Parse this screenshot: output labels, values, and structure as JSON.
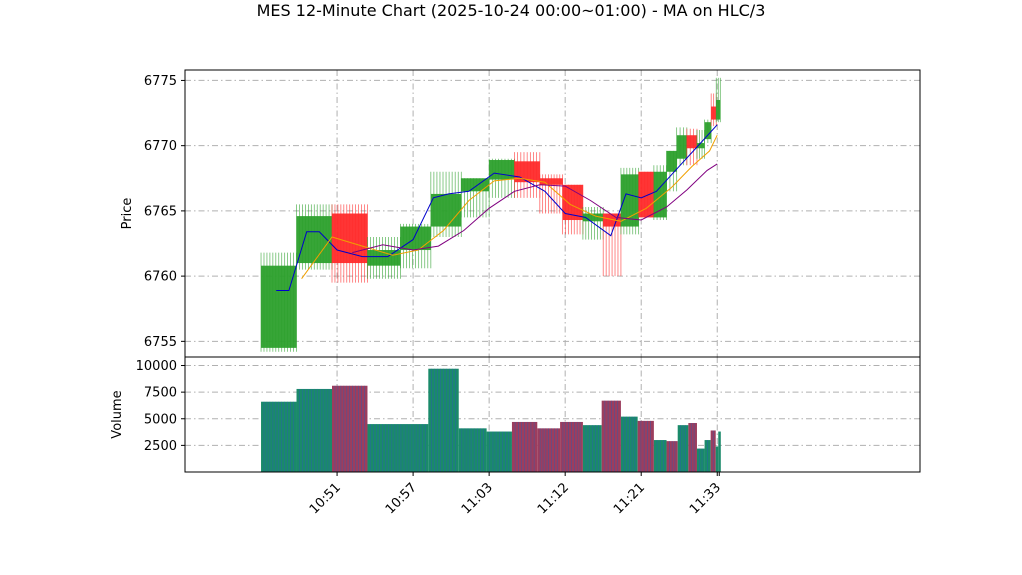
{
  "title": "MES 12-Minute Chart (2025-10-24 00:00~01:00) - MA on HLC/3",
  "colors": {
    "up": "#2ca02c",
    "down": "#ff2a2a",
    "ma_fast": "#0000cc",
    "ma_mid": "#f0a000",
    "ma_slow": "#800080",
    "volume_up": "#1a8a6a",
    "volume_down": "#9c3d5e",
    "grid": "#b0b0b0"
  },
  "chart_data": [
    {
      "type": "ohlc",
      "name": "price",
      "ylabel": "Price",
      "ylim": [
        6753.8,
        6775.8
      ],
      "yticks": [
        6755,
        6760,
        6765,
        6770,
        6775
      ],
      "xlim": [
        10.55,
        12.0
      ],
      "xticks": [
        10.85,
        11.0,
        11.15,
        11.3,
        11.45,
        11.6
      ],
      "xtick_labels": [
        "10:51",
        "10:57",
        "11:03",
        "11:12",
        "11:21",
        "11:33"
      ],
      "grid": true,
      "bars": [
        {
          "x0": 10.7,
          "x1": 10.77,
          "open": 6754.5,
          "high": 6761.8,
          "low": 6754.2,
          "close": 6760.8
        },
        {
          "x0": 10.77,
          "x1": 10.84,
          "open": 6761.0,
          "high": 6765.5,
          "low": 6760.5,
          "close": 6764.6
        },
        {
          "x0": 10.84,
          "x1": 10.91,
          "open": 6764.8,
          "high": 6765.5,
          "low": 6759.5,
          "close": 6761.0
        },
        {
          "x0": 10.91,
          "x1": 10.975,
          "open": 6760.8,
          "high": 6763.0,
          "low": 6759.8,
          "close": 6762.0
        },
        {
          "x0": 10.975,
          "x1": 11.035,
          "open": 6762.0,
          "high": 6764.0,
          "low": 6760.6,
          "close": 6763.8
        },
        {
          "x0": 11.035,
          "x1": 11.095,
          "open": 6763.8,
          "high": 6768.0,
          "low": 6763.0,
          "close": 6766.3
        },
        {
          "x0": 11.095,
          "x1": 11.15,
          "open": 6766.5,
          "high": 6767.5,
          "low": 6764.5,
          "close": 6767.5
        },
        {
          "x0": 11.15,
          "x1": 11.2,
          "open": 6767.4,
          "high": 6769.0,
          "low": 6766.0,
          "close": 6768.9
        },
        {
          "x0": 11.2,
          "x1": 11.25,
          "open": 6768.8,
          "high": 6769.5,
          "low": 6766.0,
          "close": 6767.2
        },
        {
          "x0": 11.25,
          "x1": 11.295,
          "open": 6767.5,
          "high": 6767.8,
          "low": 6764.8,
          "close": 6767.0
        },
        {
          "x0": 11.295,
          "x1": 11.335,
          "open": 6767.0,
          "high": 6767.0,
          "low": 6763.2,
          "close": 6764.3
        },
        {
          "x0": 11.335,
          "x1": 11.375,
          "open": 6764.2,
          "high": 6765.3,
          "low": 6762.8,
          "close": 6764.8
        },
        {
          "x0": 11.375,
          "x1": 11.41,
          "open": 6764.8,
          "high": 6764.8,
          "low": 6760.0,
          "close": 6763.8
        },
        {
          "x0": 11.41,
          "x1": 11.445,
          "open": 6763.8,
          "high": 6768.3,
          "low": 6763.2,
          "close": 6767.8
        },
        {
          "x0": 11.445,
          "x1": 11.475,
          "open": 6768.0,
          "high": 6768.0,
          "low": 6764.5,
          "close": 6764.5
        },
        {
          "x0": 11.475,
          "x1": 11.5,
          "open": 6764.5,
          "high": 6768.5,
          "low": 6764.3,
          "close": 6768.0
        },
        {
          "x0": 11.5,
          "x1": 11.52,
          "open": 6768.0,
          "high": 6769.6,
          "low": 6766.5,
          "close": 6769.6
        },
        {
          "x0": 11.52,
          "x1": 11.54,
          "open": 6769.0,
          "high": 6771.4,
          "low": 6768.5,
          "close": 6770.8
        },
        {
          "x0": 11.54,
          "x1": 11.56,
          "open": 6770.8,
          "high": 6771.3,
          "low": 6768.5,
          "close": 6769.8
        },
        {
          "x0": 11.56,
          "x1": 11.575,
          "open": 6769.8,
          "high": 6771.2,
          "low": 6769.0,
          "close": 6770.2
        },
        {
          "x0": 11.575,
          "x1": 11.588,
          "open": 6770.5,
          "high": 6772.0,
          "low": 6770.2,
          "close": 6771.8
        },
        {
          "x0": 11.588,
          "x1": 11.598,
          "open": 6773.0,
          "high": 6774.0,
          "low": 6771.5,
          "close": 6772.0
        },
        {
          "x0": 11.598,
          "x1": 11.606,
          "open": 6772.0,
          "high": 6775.2,
          "low": 6771.8,
          "close": 6773.5
        }
      ],
      "ma_series": [
        {
          "key": "ma_fast",
          "x": [
            10.73,
            10.755,
            10.79,
            10.815,
            10.85,
            10.9,
            10.95,
            11.0,
            11.04,
            11.07,
            11.11,
            11.16,
            11.21,
            11.26,
            11.3,
            11.34,
            11.39,
            11.42,
            11.45,
            11.48,
            11.52,
            11.56,
            11.6
          ],
          "y": [
            6758.9,
            6758.9,
            6763.4,
            6763.4,
            6762.0,
            6761.5,
            6761.5,
            6762.8,
            6766.0,
            6766.3,
            6766.5,
            6767.9,
            6767.6,
            6766.5,
            6764.8,
            6764.5,
            6763.1,
            6766.3,
            6766.0,
            6766.5,
            6768.2,
            6769.9,
            6771.6
          ]
        },
        {
          "key": "ma_mid",
          "x": [
            10.78,
            10.84,
            10.9,
            10.96,
            11.01,
            11.06,
            11.11,
            11.16,
            11.21,
            11.26,
            11.31,
            11.36,
            11.41,
            11.46,
            11.51,
            11.55,
            11.585,
            11.6
          ],
          "y": [
            6759.8,
            6763.0,
            6762.3,
            6761.6,
            6762.0,
            6763.5,
            6765.8,
            6767.3,
            6767.5,
            6767.2,
            6765.5,
            6764.6,
            6764.2,
            6765.2,
            6766.8,
            6768.4,
            6769.6,
            6770.8
          ]
        },
        {
          "key": "ma_slow",
          "x": [
            10.88,
            10.94,
            11.0,
            11.05,
            11.1,
            11.15,
            11.2,
            11.25,
            11.3,
            11.35,
            11.4,
            11.45,
            11.5,
            11.54,
            11.58,
            11.6
          ],
          "y": [
            6761.8,
            6762.4,
            6762.0,
            6762.3,
            6763.5,
            6765.2,
            6766.5,
            6767.0,
            6766.9,
            6765.8,
            6764.5,
            6764.3,
            6765.3,
            6766.6,
            6768.1,
            6768.6
          ]
        }
      ]
    },
    {
      "type": "bar",
      "name": "volume",
      "ylabel": "Volume",
      "ylim": [
        0,
        10800
      ],
      "yticks": [
        2500,
        5000,
        7500,
        10000
      ],
      "ytick_labels": [
        "2500",
        "5000",
        "7500",
        "10000"
      ],
      "grid": true,
      "bars": [
        {
          "x0": 10.7,
          "x1": 10.77,
          "value": 6600,
          "dir": "up"
        },
        {
          "x0": 10.77,
          "x1": 10.84,
          "value": 7800,
          "dir": "up"
        },
        {
          "x0": 10.84,
          "x1": 10.91,
          "value": 8100,
          "dir": "down"
        },
        {
          "x0": 10.91,
          "x1": 11.03,
          "value": 4500,
          "dir": "up"
        },
        {
          "x0": 11.03,
          "x1": 11.09,
          "value": 9700,
          "dir": "up"
        },
        {
          "x0": 11.09,
          "x1": 11.145,
          "value": 4100,
          "dir": "up"
        },
        {
          "x0": 11.145,
          "x1": 11.195,
          "value": 3800,
          "dir": "up"
        },
        {
          "x0": 11.195,
          "x1": 11.245,
          "value": 4700,
          "dir": "down"
        },
        {
          "x0": 11.245,
          "x1": 11.29,
          "value": 4100,
          "dir": "down"
        },
        {
          "x0": 11.29,
          "x1": 11.335,
          "value": 4700,
          "dir": "down"
        },
        {
          "x0": 11.335,
          "x1": 11.372,
          "value": 4400,
          "dir": "up"
        },
        {
          "x0": 11.372,
          "x1": 11.41,
          "value": 6700,
          "dir": "down"
        },
        {
          "x0": 11.41,
          "x1": 11.443,
          "value": 5200,
          "dir": "up"
        },
        {
          "x0": 11.443,
          "x1": 11.475,
          "value": 4800,
          "dir": "down"
        },
        {
          "x0": 11.475,
          "x1": 11.5,
          "value": 3000,
          "dir": "up"
        },
        {
          "x0": 11.5,
          "x1": 11.522,
          "value": 2900,
          "dir": "down"
        },
        {
          "x0": 11.522,
          "x1": 11.543,
          "value": 4400,
          "dir": "up"
        },
        {
          "x0": 11.543,
          "x1": 11.56,
          "value": 4600,
          "dir": "down"
        },
        {
          "x0": 11.56,
          "x1": 11.575,
          "value": 2200,
          "dir": "up"
        },
        {
          "x0": 11.575,
          "x1": 11.587,
          "value": 3000,
          "dir": "up"
        },
        {
          "x0": 11.587,
          "x1": 11.597,
          "value": 3900,
          "dir": "down"
        },
        {
          "x0": 11.597,
          "x1": 11.602,
          "value": 2400,
          "dir": "up"
        },
        {
          "x0": 11.602,
          "x1": 11.607,
          "value": 3800,
          "dir": "up"
        }
      ]
    }
  ]
}
